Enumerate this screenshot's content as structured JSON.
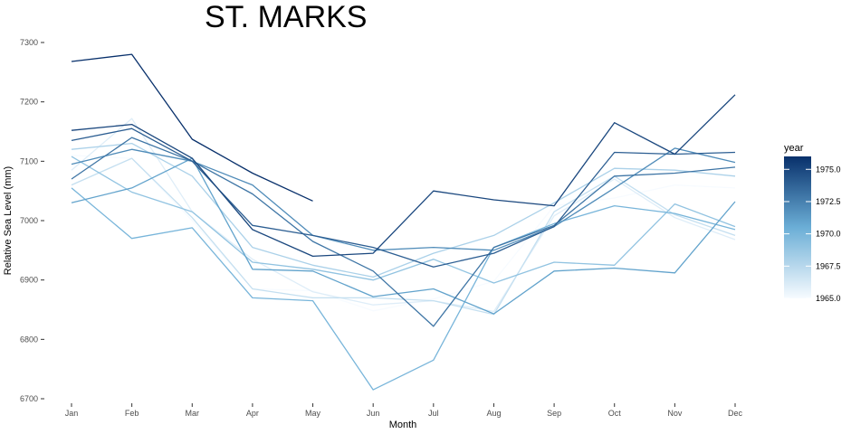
{
  "chart_data": {
    "type": "line",
    "title": "ST. MARKS",
    "xlabel": "Month",
    "ylabel": "Relative Sea Level (mm)",
    "categories": [
      "Jan",
      "Feb",
      "Mar",
      "Apr",
      "May",
      "Jun",
      "Jul",
      "Aug",
      "Sep",
      "Oct",
      "Nov",
      "Dec"
    ],
    "ylim": [
      6700,
      7300
    ],
    "yticks": [
      6700,
      6800,
      6900,
      7000,
      7100,
      7200,
      7300
    ],
    "grid": false,
    "legend": {
      "title": "year",
      "position": "right",
      "type": "colorbar",
      "range": [
        1965,
        1976
      ],
      "tick_values": [
        1965,
        1967.5,
        1970,
        1972.5,
        1975
      ],
      "tick_labels": [
        "1965.0",
        "1967.5",
        "1970.0",
        "1972.5",
        "1975.0"
      ],
      "color_low": "#f7fbff",
      "color_high": "#08306b"
    },
    "series": [
      {
        "year": 1965,
        "values": [
          7110,
          7105,
          7000,
          6885,
          6882,
          6848,
          6868,
          6898,
          7025,
          7038,
          7060,
          7055
        ]
      },
      {
        "year": 1966,
        "values": [
          7085,
          7172,
          7015,
          6935,
          6880,
          6858,
          6865,
          6847,
          7008,
          7070,
          7005,
          6968
        ]
      },
      {
        "year": 1967,
        "values": [
          7060,
          7105,
          7005,
          6885,
          6870,
          6870,
          6865,
          6842,
          7015,
          7075,
          7010,
          6975
        ]
      },
      {
        "year": 1968,
        "values": [
          7120,
          7130,
          7075,
          6955,
          6925,
          6905,
          6945,
          6975,
          7030,
          7088,
          7085,
          7075
        ]
      },
      {
        "year": 1969,
        "values": [
          7108,
          7048,
          7015,
          6930,
          6918,
          6900,
          6935,
          6895,
          6930,
          6925,
          7028,
          6990
        ]
      },
      {
        "year": 1970,
        "values": [
          7055,
          6970,
          6988,
          6870,
          6865,
          6715,
          6765,
          6955,
          6995,
          7025,
          7012,
          6985
        ]
      },
      {
        "year": 1971,
        "values": [
          7030,
          7055,
          7105,
          6918,
          6915,
          6872,
          6885,
          6843,
          6915,
          6920,
          6912,
          7032
        ]
      },
      {
        "year": 1972,
        "values": [
          7095,
          7120,
          7100,
          7060,
          6975,
          6950,
          6955,
          6950,
          6990,
          7055,
          7122,
          7098
        ]
      },
      {
        "year": 1973,
        "values": [
          7070,
          7140,
          7100,
          7045,
          6965,
          6915,
          6822,
          6955,
          6992,
          7075,
          7080,
          7090
        ]
      },
      {
        "year": 1974,
        "values": [
          7135,
          7155,
          7100,
          6992,
          6975,
          6955,
          6922,
          6945,
          6990,
          7115,
          7112,
          7115
        ]
      },
      {
        "year": 1975,
        "values": [
          7152,
          7162,
          7105,
          6985,
          6940,
          6945,
          7050,
          7035,
          7025,
          7165,
          7112,
          7212
        ]
      },
      {
        "year": 1976,
        "values": [
          7268,
          7280,
          7137,
          7080,
          7033,
          null,
          null,
          null,
          null,
          null,
          null,
          null
        ]
      }
    ]
  }
}
